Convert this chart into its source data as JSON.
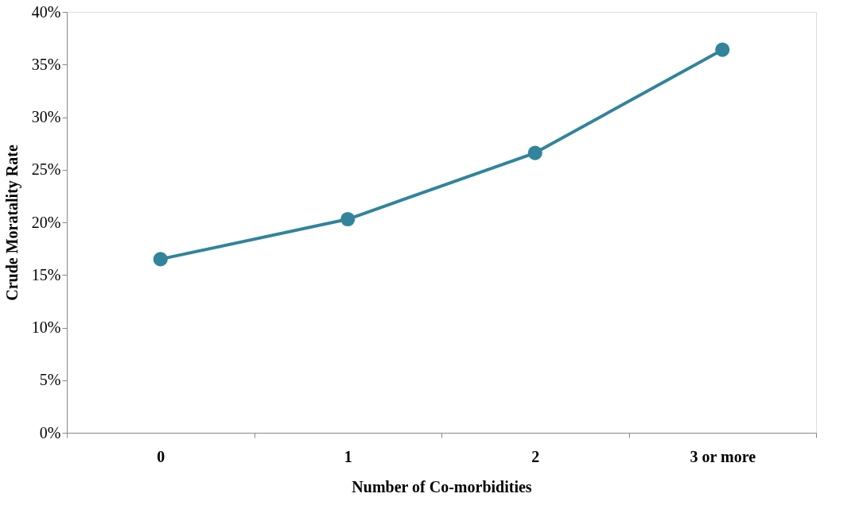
{
  "chart_data": {
    "type": "line",
    "xlabel": "Number of Co-morbidities",
    "ylabel": "Crude Moratality Rate",
    "categories": [
      "0",
      "1",
      "2",
      "3 or more"
    ],
    "series": [
      {
        "color": "#31849b",
        "values": [
          16.5,
          20.3,
          26.6,
          36.4
        ]
      }
    ],
    "ylim": [
      0,
      40
    ],
    "yticks": [
      {
        "value": 0,
        "label": "0%"
      },
      {
        "value": 5,
        "label": "5%"
      },
      {
        "value": 10,
        "label": "10%"
      },
      {
        "value": 15,
        "label": "15%"
      },
      {
        "value": 20,
        "label": "20%"
      },
      {
        "value": 25,
        "label": "25%"
      },
      {
        "value": 30,
        "label": "30%"
      },
      {
        "value": 35,
        "label": "35%"
      },
      {
        "value": 40,
        "label": "40%"
      }
    ],
    "grid": false,
    "legend": false,
    "marker": "circle",
    "line_style": "solid"
  }
}
